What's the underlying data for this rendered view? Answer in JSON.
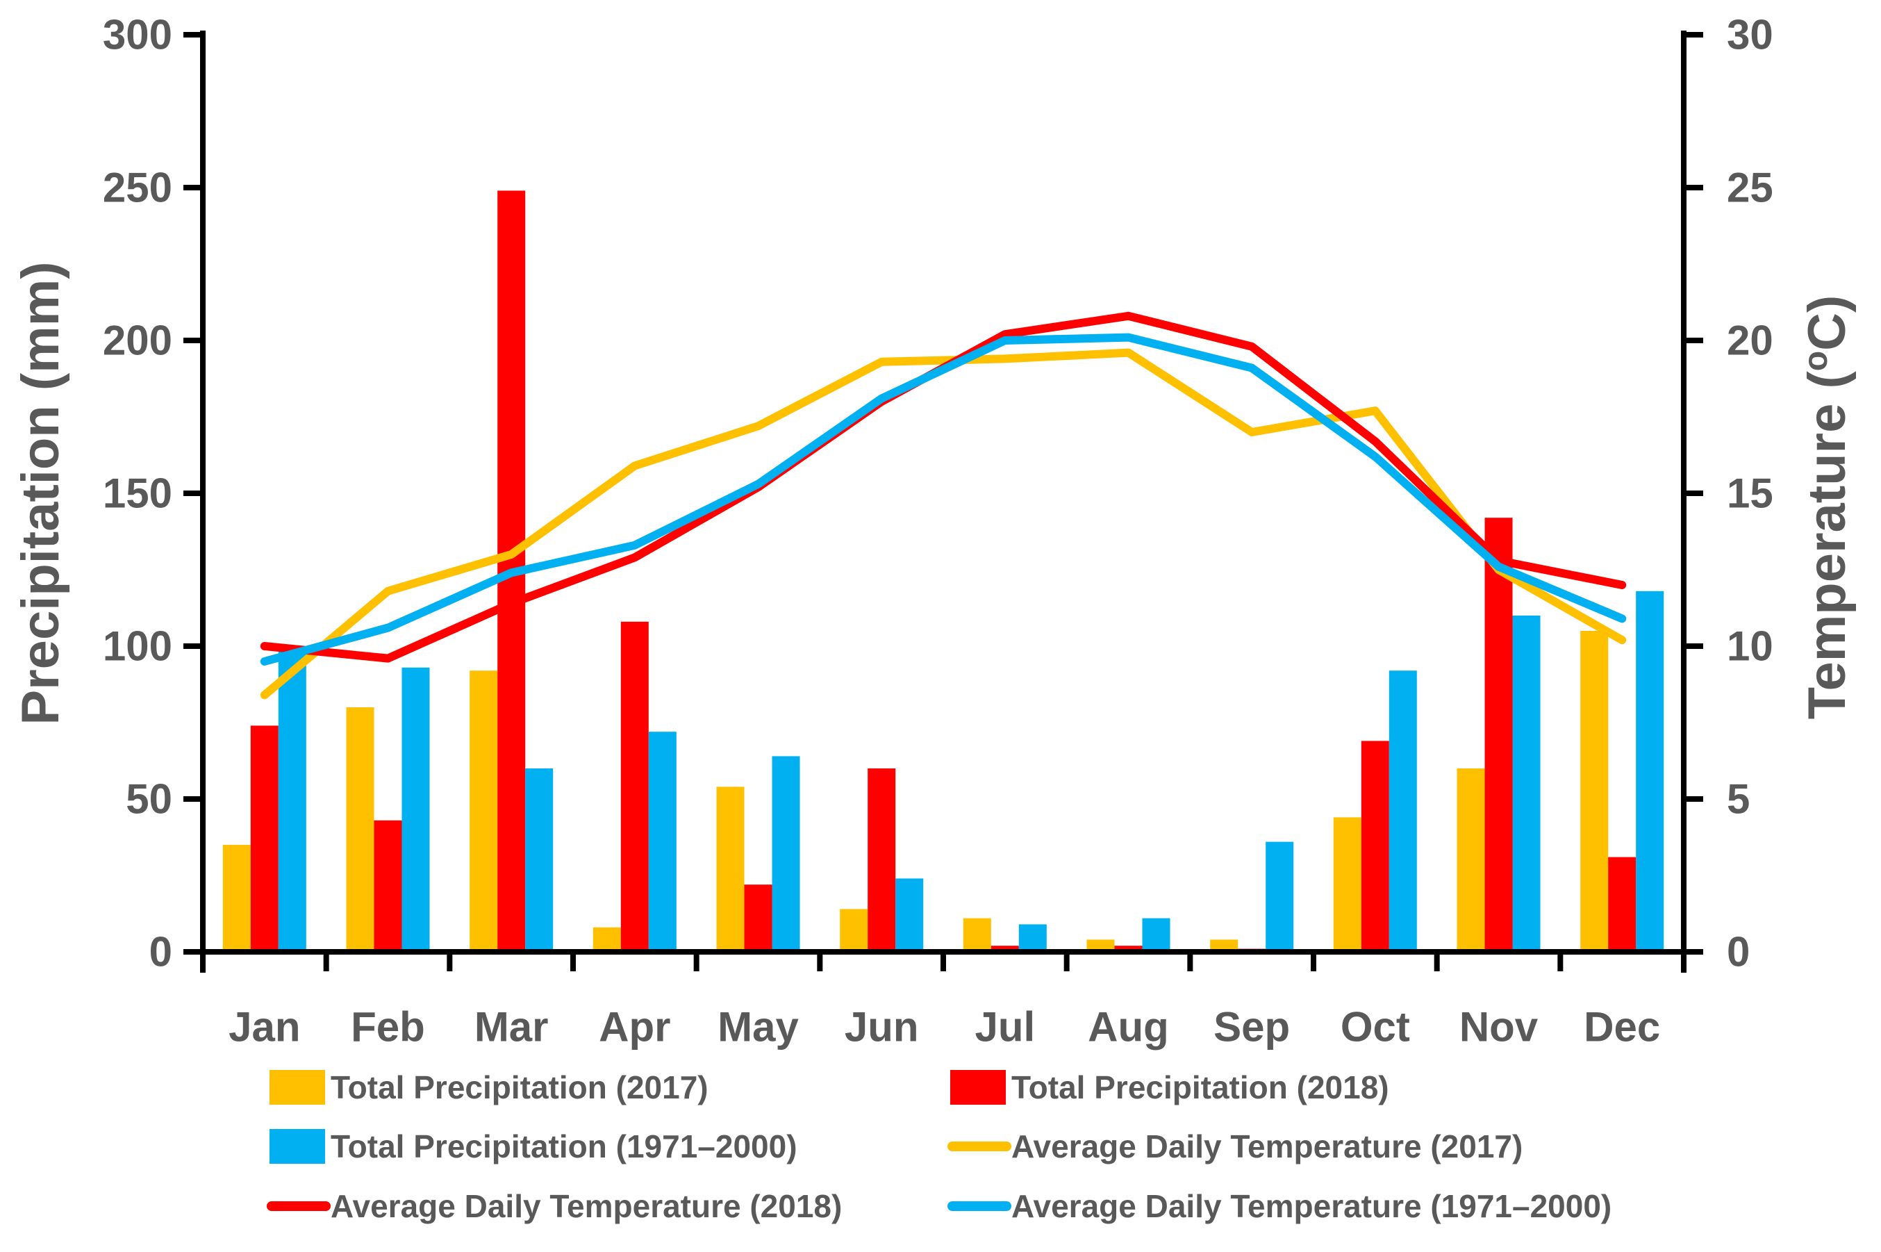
{
  "colors": {
    "background": "#FFFFFF",
    "axis": "#000000",
    "text": "#595959",
    "gold": "#FFC000",
    "red": "#FF0000",
    "blue": "#00B0F0"
  },
  "chart_data": {
    "type": "bar+line combo climograph",
    "months": [
      "Jan",
      "Feb",
      "Mar",
      "Apr",
      "May",
      "Jun",
      "Jul",
      "Aug",
      "Sep",
      "Oct",
      "Nov",
      "Dec"
    ],
    "left_axis": {
      "title": "Precipitation (mm)",
      "min": 0,
      "max": 300,
      "step": 50,
      "tick_labels": [
        "0",
        "50",
        "100",
        "150",
        "200",
        "250",
        "300"
      ]
    },
    "right_axis": {
      "title_pre": "Temperature (",
      "title_sup": "o",
      "title_post": "C)",
      "min": 0,
      "max": 30,
      "step": 5,
      "tick_labels": [
        "0",
        "5",
        "10",
        "15",
        "20",
        "25",
        "30"
      ]
    },
    "bar_series": [
      {
        "name": "Total Precipitation (2017)",
        "color": "#FFC000",
        "values": [
          35,
          80,
          92,
          8,
          54,
          14,
          11,
          4,
          4,
          44,
          60,
          105
        ]
      },
      {
        "name": "Total Precipitation (2018)",
        "color": "#FF0000",
        "values": [
          74,
          43,
          249,
          108,
          22,
          60,
          2,
          2,
          1,
          69,
          142,
          31
        ]
      },
      {
        "name": "Total Precipitation (1971–2000)",
        "color": "#00B0F0",
        "values": [
          100,
          93,
          60,
          72,
          64,
          24,
          9,
          11,
          36,
          92,
          110,
          118
        ]
      }
    ],
    "line_series": [
      {
        "name": "Average Daily Temperature (2017)",
        "color": "#FFC000",
        "values": [
          8.4,
          11.8,
          13.0,
          15.9,
          17.2,
          19.3,
          19.4,
          19.6,
          17.0,
          17.7,
          12.5,
          10.2
        ]
      },
      {
        "name": "Average Daily Temperature (2018)",
        "color": "#FF0000",
        "values": [
          10.0,
          9.6,
          11.4,
          12.9,
          15.2,
          18.0,
          20.2,
          20.8,
          19.8,
          16.7,
          12.8,
          12.0
        ]
      },
      {
        "name": "Average Daily Temperature (1971–2000)",
        "color": "#00B0F0",
        "values": [
          9.5,
          10.6,
          12.4,
          13.3,
          15.3,
          18.1,
          20.0,
          20.1,
          19.1,
          16.2,
          12.6,
          10.9
        ]
      }
    ],
    "legend": {
      "items": [
        {
          "label": "Total Precipitation (2017)",
          "type": "swatch",
          "color": "#FFC000",
          "col": 0,
          "row": 0
        },
        {
          "label": "Total Precipitation (2018)",
          "type": "swatch",
          "color": "#FF0000",
          "col": 1,
          "row": 0
        },
        {
          "label": "Total Precipitation (1971–2000)",
          "type": "swatch",
          "color": "#00B0F0",
          "col": 0,
          "row": 1
        },
        {
          "label": "Average Daily Temperature (2017)",
          "type": "line",
          "color": "#FFC000",
          "col": 1,
          "row": 1
        },
        {
          "label": "Average Daily Temperature (2018)",
          "type": "line",
          "color": "#FF0000",
          "col": 0,
          "row": 2
        },
        {
          "label": "Average Daily Temperature (1971–2000)",
          "type": "line",
          "color": "#00B0F0",
          "col": 1,
          "row": 2
        }
      ]
    }
  }
}
